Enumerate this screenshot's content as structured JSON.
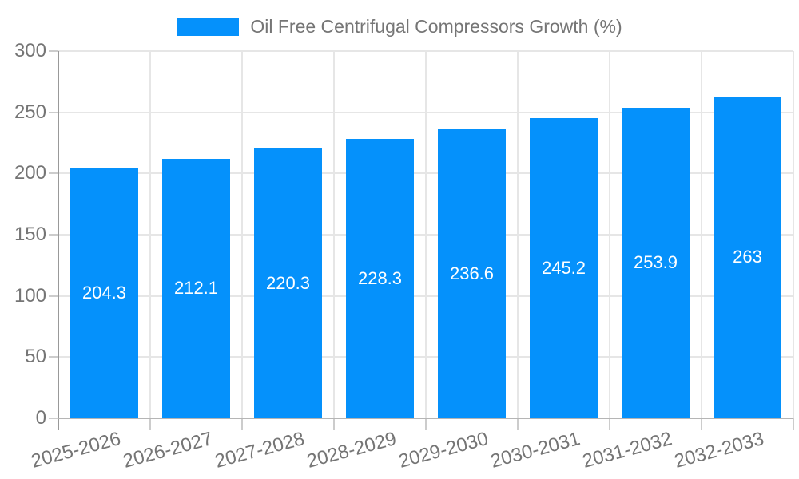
{
  "legend": {
    "label": "Oil Free Centrifugal Compressors Growth (%)"
  },
  "colors": {
    "bar": "#0591fb",
    "grid": "#e6e6e6",
    "axis_y": "#999999",
    "axis_x": "#b5b5b5",
    "tick": "#cccccc",
    "text": "#757575",
    "bar_label": "#ffffff",
    "background": "#ffffff"
  },
  "chart_data": {
    "type": "bar",
    "title": "Oil Free Centrifugal Compressors Growth (%)",
    "categories": [
      "2025-2026",
      "2026-2027",
      "2027-2028",
      "2028-2029",
      "2029-2030",
      "2030-2031",
      "2031-2032",
      "2032-2033"
    ],
    "values": [
      204.3,
      212.1,
      220.3,
      228.3,
      236.6,
      245.2,
      253.9,
      263
    ],
    "value_labels": [
      "204.3",
      "212.1",
      "220.3",
      "228.3",
      "236.6",
      "245.2",
      "253.9",
      "263"
    ],
    "xlabel": "",
    "ylabel": "",
    "ylim": [
      0,
      300
    ],
    "yticks": [
      0,
      50,
      100,
      150,
      200,
      250,
      300
    ],
    "grid": true,
    "legend_position": "top",
    "bar_label_position": "inside-center",
    "x_tick_rotation_deg": -15
  }
}
